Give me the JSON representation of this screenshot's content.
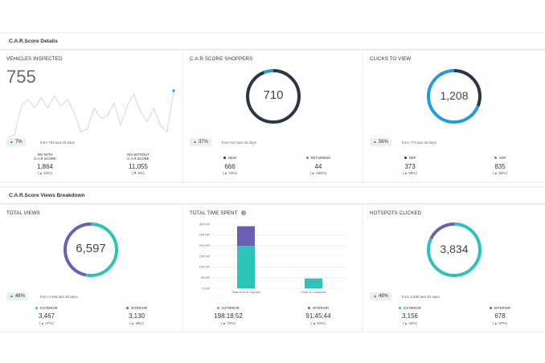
{
  "sections": {
    "details_title": "C.A.R.Score Details",
    "breakdown_title": "C.A.R.Score Views Breakdown"
  },
  "vehicles": {
    "title": "VEHICLES INSPECTED",
    "value": "755",
    "badge": "7%",
    "from": "from 704 last 30 days",
    "left_label_1": "INV WITH",
    "left_label_2": "C.A.R.SCORE",
    "left_value": "1,864",
    "left_change": "22%",
    "right_label_1": "INV WITHOUT",
    "right_label_2": "C.A.R.SCORE",
    "right_value": "11,055",
    "right_change": "9%"
  },
  "shoppers": {
    "title": "C.A.R.SCORE SHOPPERS",
    "value": "710",
    "badge": "37%",
    "from": "from 517 last 30 days",
    "left_label": "NEW",
    "left_value": "666",
    "left_change": "31%",
    "right_label": "RETURNING",
    "right_value": "44",
    "right_change": "450%"
  },
  "clicks": {
    "title": "CLICKS TO VIEW",
    "value": "1,208",
    "badge": "56%",
    "from": "from 773 last 30 days",
    "left_label": "SRP",
    "left_value": "373",
    "left_change": "59%",
    "right_label": "VDP",
    "right_value": "835",
    "right_change": "55%"
  },
  "total_views": {
    "title": "TOTAL VIEWS",
    "value": "6,597",
    "badge": "48%",
    "from": "from 4,469 last 30 days",
    "left_label": "EXTERIOR",
    "left_value": "3,467",
    "left_change": "47%",
    "right_label": "INTERIOR",
    "right_value": "3,130",
    "right_change": "48%"
  },
  "time_spent": {
    "title": "TOTAL TIME SPENT",
    "info_icon": "i",
    "left_label": "EXTERIOR",
    "left_value": "198:18:52",
    "left_change": "72%",
    "right_label": "INTERIOR",
    "right_value": "91:45:44",
    "right_change": "51%"
  },
  "hotspots": {
    "title": "HOTSPOTS CLICKED",
    "value": "3,834",
    "badge": "49%",
    "from": "from 2,580 last 30 days",
    "left_label": "EXTERIOR",
    "left_value": "3,156",
    "left_change": "42%",
    "right_label": "INTERIOR",
    "right_value": "678",
    "right_change": "87%"
  },
  "colors": {
    "teal": "#2cc4b8",
    "purple": "#6b5fb5",
    "blue": "#1f9be0",
    "navy": "#2c3546",
    "green": "#2e9b47",
    "red": "#d9333f"
  },
  "rings": {
    "shoppers": {
      "fractions": [
        0.94,
        0.06
      ],
      "colors": [
        "#2c3546",
        "#1f9be0"
      ]
    },
    "clicks": {
      "fractions": [
        0.31,
        0.69
      ],
      "colors": [
        "#2c3546",
        "#1f9be0"
      ]
    },
    "total_views": {
      "fractions": [
        0.53,
        0.47
      ],
      "colors": [
        "#2cc4b8",
        "#6b5fb5"
      ]
    },
    "hotspots": {
      "fractions": [
        0.82,
        0.18
      ],
      "colors": [
        "#2cc4b8",
        "#6b5fb5"
      ]
    }
  },
  "sparkline": [
    58,
    55,
    22,
    14,
    24,
    12,
    24,
    10,
    22,
    14,
    30,
    52,
    48,
    24,
    36,
    33,
    18,
    44,
    21,
    8,
    28,
    40,
    24,
    44,
    52,
    4
  ],
  "chart_data": {
    "type": "bar",
    "stacked": true,
    "title": "TOTAL TIME SPENT",
    "categories": [
      "Total time on reports",
      "Time on Hotspots"
    ],
    "series": [
      {
        "name": "EXTERIOR",
        "color": "#2cc4b8",
        "values": [
          198,
          46
        ]
      },
      {
        "name": "INTERIOR",
        "color": "#6b5fb5",
        "values": [
          92,
          0
        ]
      }
    ],
    "yticks": [
      "0 HR",
      "50 HR",
      "100 HR",
      "150 HR",
      "200 HR",
      "250 HR",
      "300 HR"
    ],
    "ylim": [
      0,
      300
    ],
    "grid": true
  }
}
